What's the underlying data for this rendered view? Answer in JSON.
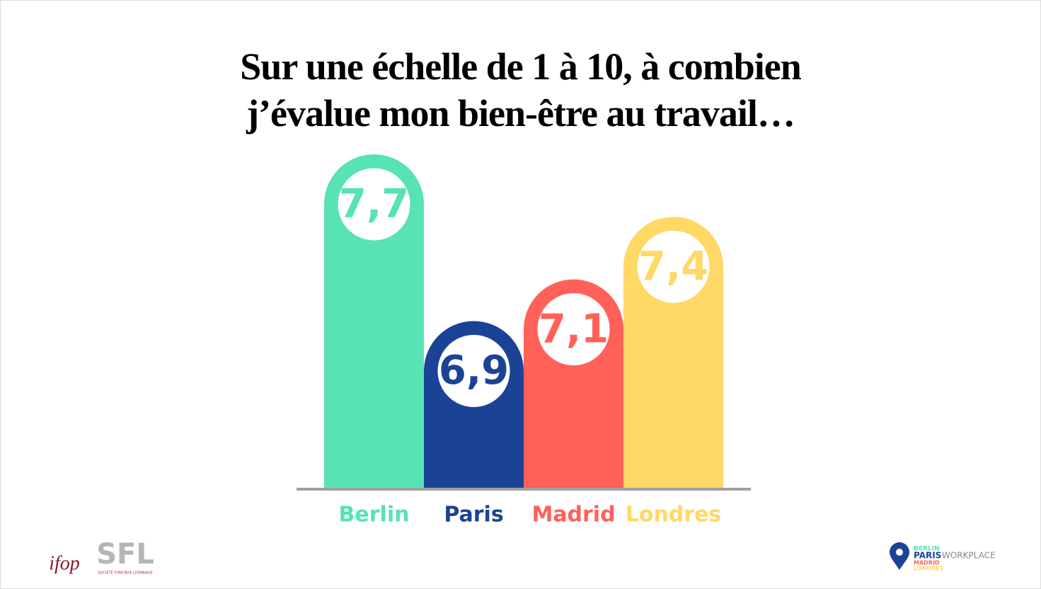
{
  "chart_data": {
    "type": "bar",
    "title": "Sur une échelle de 1 à 10, à combien j’évalue mon bien-être au travail…",
    "categories": [
      "Berlin",
      "Paris",
      "Madrid",
      "Londres"
    ],
    "values": [
      7.7,
      6.9,
      7.1,
      7.4
    ],
    "value_labels": [
      "7,7",
      "6,9",
      "7,1",
      "7,4"
    ],
    "colors": [
      "#57e3b3",
      "#1b4395",
      "#ff6158",
      "#ffd866"
    ],
    "ylim": [
      6.1,
      7.7
    ]
  },
  "footer": {
    "ifop": "ifop",
    "sfl": "SFL",
    "sfl_subtitle": "SOCIETE FONCIERE LYONNAISE",
    "workplace": {
      "berlin": "BERLIN",
      "paris": "PARIS",
      "workplace": "WORKPLACE",
      "madrid": "MADRID",
      "londres": "LONDRES"
    }
  }
}
